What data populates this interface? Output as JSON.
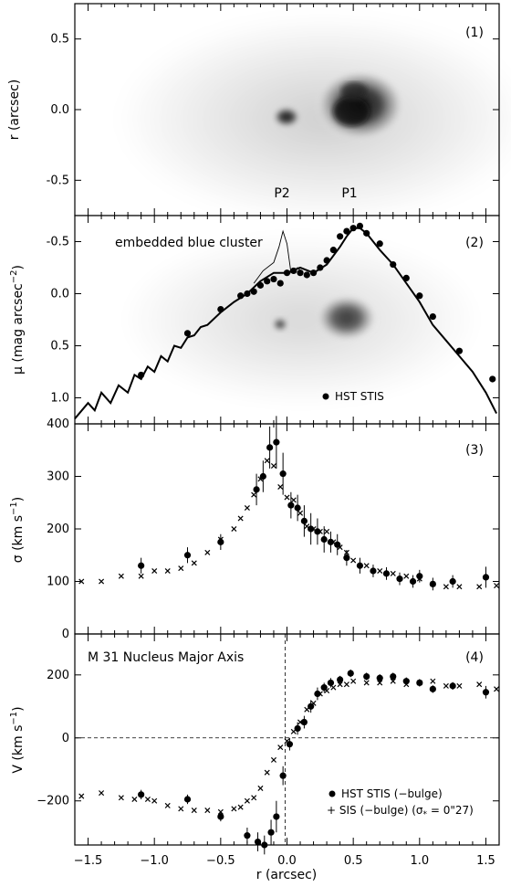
{
  "chart_data": [
    {
      "panel": "(1)",
      "type": "heatmap",
      "ylabel": "r (arcsec)",
      "xlim": [
        -1.6,
        1.6
      ],
      "ylim": [
        -0.75,
        0.75
      ],
      "yticks": [
        "0.5",
        "0.0",
        "-0.5"
      ],
      "annotations": [
        "P2",
        "P1"
      ],
      "grid": false
    },
    {
      "panel": "(2)",
      "type": "line",
      "ylabel": "μ (mag arcsec",
      "ylabel_sup": "−2",
      "ylabel_close": ")",
      "xlim": [
        -1.6,
        1.6
      ],
      "ylim": [
        -0.75,
        1.25
      ],
      "y_inverted": true,
      "yticks": [
        "-0.5",
        "0.0",
        "0.5",
        "1.0"
      ],
      "annotation": "embedded blue cluster",
      "legend": [
        "HST STIS"
      ],
      "series": [
        {
          "name": "HST STIS",
          "marker": "filled-circle",
          "x": [
            -1.1,
            -0.75,
            -0.5,
            -0.35,
            -0.3,
            -0.25,
            -0.2,
            -0.15,
            -0.1,
            -0.05,
            0.0,
            0.05,
            0.1,
            0.15,
            0.2,
            0.25,
            0.3,
            0.35,
            0.4,
            0.45,
            0.5,
            0.55,
            0.6,
            0.7,
            0.8,
            0.9,
            1.0,
            1.1,
            1.3,
            1.55
          ],
          "y": [
            0.78,
            0.38,
            0.15,
            0.02,
            0.0,
            -0.02,
            -0.08,
            -0.12,
            -0.14,
            -0.1,
            -0.2,
            -0.22,
            -0.2,
            -0.18,
            -0.2,
            -0.25,
            -0.32,
            -0.42,
            -0.55,
            -0.6,
            -0.63,
            -0.65,
            -0.58,
            -0.48,
            -0.28,
            -0.15,
            0.02,
            0.22,
            0.55,
            0.82
          ]
        },
        {
          "name": "thin",
          "style": "thin-line",
          "x": [
            -0.25,
            -0.18,
            -0.1,
            -0.06,
            -0.03,
            0.0,
            0.03,
            0.08,
            0.12
          ],
          "y": [
            -0.1,
            -0.22,
            -0.3,
            -0.45,
            -0.6,
            -0.48,
            -0.2,
            -0.25,
            -0.2
          ]
        },
        {
          "name": "thick",
          "style": "thick-line",
          "x": [
            -1.6,
            -1.5,
            -1.45,
            -1.4,
            -1.33,
            -1.27,
            -1.2,
            -1.15,
            -1.1,
            -1.05,
            -1.0,
            -0.95,
            -0.9,
            -0.85,
            -0.8,
            -0.75,
            -0.7,
            -0.65,
            -0.6,
            -0.5,
            -0.4,
            -0.3,
            -0.2,
            -0.1,
            0.0,
            0.1,
            0.2,
            0.3,
            0.4,
            0.45,
            0.5,
            0.55,
            0.6,
            0.65,
            0.7,
            0.8,
            0.9,
            1.0,
            1.1,
            1.2,
            1.3,
            1.4,
            1.5,
            1.58
          ],
          "y": [
            1.2,
            1.05,
            1.12,
            0.95,
            1.05,
            0.88,
            0.95,
            0.78,
            0.82,
            0.7,
            0.75,
            0.6,
            0.65,
            0.5,
            0.52,
            0.42,
            0.4,
            0.32,
            0.3,
            0.18,
            0.08,
            0.0,
            -0.12,
            -0.2,
            -0.2,
            -0.25,
            -0.2,
            -0.28,
            -0.45,
            -0.55,
            -0.63,
            -0.63,
            -0.58,
            -0.5,
            -0.42,
            -0.28,
            -0.1,
            0.08,
            0.3,
            0.45,
            0.6,
            0.75,
            0.95,
            1.15
          ]
        }
      ]
    },
    {
      "panel": "(3)",
      "type": "scatter",
      "ylabel": "σ (km s",
      "ylabel_sup": "−1",
      "ylabel_close": ")",
      "xlim": [
        -1.6,
        1.6
      ],
      "ylim": [
        0,
        400
      ],
      "yticks": [
        "400",
        "300",
        "200",
        "100",
        "0"
      ],
      "series": [
        {
          "name": "HST STIS",
          "marker": "filled-circle",
          "x": [
            -1.1,
            -0.75,
            -0.5,
            -0.23,
            -0.18,
            -0.13,
            -0.08,
            -0.03,
            0.03,
            0.08,
            0.13,
            0.18,
            0.23,
            0.28,
            0.33,
            0.38,
            0.45,
            0.55,
            0.65,
            0.75,
            0.85,
            0.95,
            1.0,
            1.1,
            1.25,
            1.5
          ],
          "y": [
            130,
            150,
            175,
            275,
            300,
            355,
            365,
            305,
            245,
            240,
            215,
            200,
            195,
            180,
            175,
            170,
            145,
            130,
            120,
            115,
            105,
            100,
            110,
            95,
            100,
            108
          ],
          "err": [
            15,
            15,
            15,
            30,
            30,
            40,
            50,
            40,
            25,
            25,
            30,
            30,
            25,
            25,
            20,
            20,
            15,
            15,
            12,
            12,
            12,
            12,
            12,
            12,
            12,
            20
          ]
        },
        {
          "name": "SIS",
          "marker": "cross",
          "x": [
            -1.55,
            -1.4,
            -1.25,
            -1.1,
            -1.0,
            -0.9,
            -0.8,
            -0.7,
            -0.6,
            -0.5,
            -0.4,
            -0.35,
            -0.3,
            -0.25,
            -0.2,
            -0.15,
            -0.1,
            -0.05,
            0.0,
            0.05,
            0.1,
            0.15,
            0.2,
            0.25,
            0.3,
            0.35,
            0.4,
            0.45,
            0.5,
            0.6,
            0.7,
            0.8,
            0.9,
            1.0,
            1.1,
            1.2,
            1.3,
            1.45,
            1.58
          ],
          "y": [
            100,
            100,
            110,
            110,
            120,
            120,
            125,
            135,
            155,
            180,
            200,
            220,
            240,
            265,
            295,
            330,
            320,
            280,
            260,
            255,
            230,
            205,
            200,
            195,
            195,
            175,
            165,
            155,
            140,
            130,
            120,
            115,
            110,
            105,
            95,
            90,
            90,
            90,
            92
          ]
        }
      ]
    },
    {
      "panel": "(4)",
      "type": "scatter",
      "title": "M 31 Nucleus Major Axis",
      "ylabel": "V (km s",
      "ylabel_sup": "−1",
      "ylabel_close": ")",
      "xlabel": "r (arcsec)",
      "xlim": [
        -1.6,
        1.6
      ],
      "ylim": [
        -340,
        330
      ],
      "yticks": [
        "200",
        "0",
        "−200"
      ],
      "xticks": [
        "−1.5",
        "−1.0",
        "−0.5",
        "0.0",
        "0.5",
        "1.0",
        "1.5"
      ],
      "legend": [
        "HST STIS (−bulge)",
        "+ SIS (−bulge) (σ",
        "*",
        " = 0\"27)"
      ],
      "series": [
        {
          "name": "HST STIS (−bulge)",
          "marker": "filled-circle",
          "x": [
            -1.1,
            -0.75,
            -0.5,
            -0.3,
            -0.22,
            -0.17,
            -0.12,
            -0.08,
            -0.03,
            0.02,
            0.08,
            0.13,
            0.18,
            0.23,
            0.28,
            0.33,
            0.4,
            0.48,
            0.6,
            0.7,
            0.8,
            0.9,
            1.0,
            1.1,
            1.25,
            1.5
          ],
          "y": [
            -180,
            -195,
            -250,
            -310,
            -330,
            -340,
            -300,
            -250,
            -120,
            -20,
            30,
            50,
            100,
            140,
            160,
            175,
            185,
            205,
            195,
            190,
            195,
            180,
            175,
            155,
            165,
            145
          ],
          "err": [
            15,
            15,
            15,
            25,
            30,
            30,
            40,
            50,
            30,
            20,
            20,
            20,
            20,
            20,
            15,
            15,
            12,
            12,
            12,
            12,
            12,
            12,
            12,
            12,
            12,
            20
          ]
        },
        {
          "name": "SIS (−bulge)",
          "marker": "cross",
          "x": [
            -1.55,
            -1.4,
            -1.25,
            -1.15,
            -1.05,
            -1.0,
            -0.9,
            -0.8,
            -0.7,
            -0.6,
            -0.5,
            -0.4,
            -0.35,
            -0.3,
            -0.25,
            -0.2,
            -0.15,
            -0.1,
            -0.05,
            0.0,
            0.05,
            0.1,
            0.15,
            0.2,
            0.25,
            0.3,
            0.35,
            0.4,
            0.45,
            0.5,
            0.6,
            0.7,
            0.8,
            0.9,
            1.0,
            1.1,
            1.2,
            1.3,
            1.45,
            1.58
          ],
          "y": [
            -185,
            -175,
            -190,
            -195,
            -195,
            -200,
            -215,
            -225,
            -230,
            -230,
            -235,
            -225,
            -220,
            -200,
            -190,
            -160,
            -110,
            -70,
            -30,
            -10,
            20,
            50,
            90,
            110,
            140,
            150,
            160,
            170,
            170,
            180,
            175,
            175,
            180,
            170,
            175,
            180,
            165,
            165,
            170,
            155
          ]
        }
      ]
    }
  ]
}
